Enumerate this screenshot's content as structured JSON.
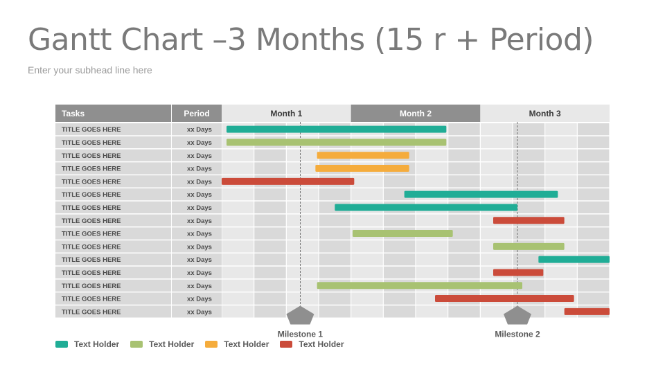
{
  "title": "Gantt Chart –3 Months (15 r + Period)",
  "subtitle": "Enter your subhead line here",
  "colors": {
    "teal": "#20ad96",
    "green": "#a8c272",
    "orange": "#f5ac3c",
    "red": "#cb4b3a",
    "header_dark": "#8f8f8f",
    "header_light": "#e8e8e8",
    "cell_dark": "#d9d9d9",
    "cell_light": "#e8e8e8",
    "milestone": "#8f8f8f"
  },
  "chart_data": {
    "type": "gantt",
    "columns": {
      "tasks": "Tasks",
      "period": "Period"
    },
    "months": [
      "Month 1",
      "Month 2",
      "Month 3"
    ],
    "weeks_per_month": 4,
    "x_range_weeks": [
      0,
      12
    ],
    "tasks": [
      {
        "name": "TITLE GOES HERE",
        "period": "xx Days",
        "start": 0.15,
        "end": 6.95,
        "color": "teal"
      },
      {
        "name": "TITLE GOES HERE",
        "period": "xx Days",
        "start": 0.15,
        "end": 6.95,
        "color": "green"
      },
      {
        "name": "TITLE GOES HERE",
        "period": "xx Days",
        "start": 2.95,
        "end": 5.8,
        "color": "orange"
      },
      {
        "name": "TITLE GOES HERE",
        "period": "xx Days",
        "start": 2.9,
        "end": 5.8,
        "color": "orange"
      },
      {
        "name": "TITLE GOES HERE",
        "period": "xx Days",
        "start": 0.0,
        "end": 4.1,
        "color": "red"
      },
      {
        "name": "TITLE GOES HERE",
        "period": "xx Days",
        "start": 5.65,
        "end": 10.4,
        "color": "teal"
      },
      {
        "name": "TITLE GOES HERE",
        "period": "xx Days",
        "start": 3.5,
        "end": 9.15,
        "color": "teal"
      },
      {
        "name": "TITLE GOES HERE",
        "period": "xx Days",
        "start": 8.4,
        "end": 10.6,
        "color": "red"
      },
      {
        "name": "TITLE GOES HERE",
        "period": "xx Days",
        "start": 4.05,
        "end": 7.15,
        "color": "green"
      },
      {
        "name": "TITLE GOES HERE",
        "period": "xx Days",
        "start": 8.4,
        "end": 10.6,
        "color": "green"
      },
      {
        "name": "TITLE GOES HERE",
        "period": "xx Days",
        "start": 9.8,
        "end": 12.0,
        "color": "teal"
      },
      {
        "name": "TITLE GOES HERE",
        "period": "xx Days",
        "start": 8.4,
        "end": 9.95,
        "color": "red"
      },
      {
        "name": "TITLE GOES HERE",
        "period": "xx Days",
        "start": 2.95,
        "end": 9.3,
        "color": "green"
      },
      {
        "name": "TITLE GOES HERE",
        "period": "xx Days",
        "start": 6.6,
        "end": 10.9,
        "color": "red"
      },
      {
        "name": "TITLE GOES HERE",
        "period": "xx Days",
        "start": 10.6,
        "end": 12.0,
        "color": "red"
      }
    ],
    "milestones": [
      {
        "label": "Milestone 1",
        "week": 2.43
      },
      {
        "label": "Milestone 2",
        "week": 9.15
      }
    ],
    "legend": [
      {
        "label": "Text Holder",
        "color": "teal"
      },
      {
        "label": "Text Holder",
        "color": "green"
      },
      {
        "label": "Text Holder",
        "color": "orange"
      },
      {
        "label": "Text Holder",
        "color": "red"
      }
    ]
  }
}
